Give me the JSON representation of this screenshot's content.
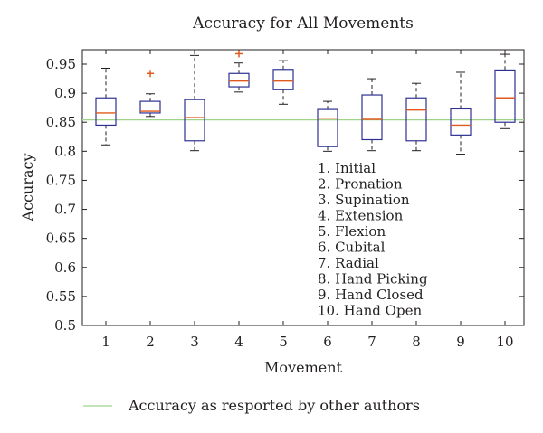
{
  "chart_data": {
    "type": "box",
    "title": "Accuracy for All Movements",
    "xlabel": "Movement",
    "ylabel": "Accuracy",
    "categories": [
      "1",
      "2",
      "3",
      "4",
      "5",
      "6",
      "7",
      "8",
      "9",
      "10"
    ],
    "ylim": [
      0.5,
      0.97
    ],
    "yticks": [
      "0.5",
      "0.55",
      "0.6",
      "0.65",
      "0.7",
      "0.75",
      "0.8",
      "0.85",
      "0.9",
      "0.95"
    ],
    "boxes": [
      {
        "category": "1",
        "whisker_low": 0.811,
        "q1": 0.845,
        "median": 0.866,
        "q3": 0.892,
        "whisker_high": 0.943,
        "outliers": []
      },
      {
        "category": "2",
        "whisker_low": 0.86,
        "q1": 0.866,
        "median": 0.869,
        "q3": 0.886,
        "whisker_high": 0.899,
        "outliers": [
          0.934
        ]
      },
      {
        "category": "3",
        "whisker_low": 0.801,
        "q1": 0.818,
        "median": 0.858,
        "q3": 0.889,
        "whisker_high": 0.965,
        "outliers": []
      },
      {
        "category": "4",
        "whisker_low": 0.902,
        "q1": 0.911,
        "median": 0.921,
        "q3": 0.934,
        "whisker_high": 0.952,
        "outliers": [
          0.968
        ]
      },
      {
        "category": "5",
        "whisker_low": 0.881,
        "q1": 0.906,
        "median": 0.921,
        "q3": 0.941,
        "whisker_high": 0.956,
        "outliers": []
      },
      {
        "category": "6",
        "whisker_low": 0.8,
        "q1": 0.808,
        "median": 0.857,
        "q3": 0.872,
        "whisker_high": 0.886,
        "outliers": []
      },
      {
        "category": "7",
        "whisker_low": 0.801,
        "q1": 0.82,
        "median": 0.855,
        "q3": 0.897,
        "whisker_high": 0.925,
        "outliers": []
      },
      {
        "category": "8",
        "whisker_low": 0.801,
        "q1": 0.818,
        "median": 0.871,
        "q3": 0.892,
        "whisker_high": 0.917,
        "outliers": []
      },
      {
        "category": "9",
        "whisker_low": 0.795,
        "q1": 0.828,
        "median": 0.845,
        "q3": 0.873,
        "whisker_high": 0.936,
        "outliers": []
      },
      {
        "category": "10",
        "whisker_low": 0.839,
        "q1": 0.85,
        "median": 0.892,
        "q3": 0.94,
        "whisker_high": 0.967,
        "outliers": []
      }
    ],
    "reference_line": {
      "value": 0.854,
      "label": "Accuracy as resported by other authors"
    },
    "annotations": [
      "1. Initial",
      "2. Pronation",
      "3. Supination",
      "4. Extension",
      "5. Flexion",
      "6. Cubital",
      "7. Radial",
      "8. Hand Picking",
      "9. Hand Closed",
      "10. Hand Open"
    ],
    "grid": false,
    "legend_position": "bottom-left",
    "colors": {
      "box": "#2e3192",
      "median": "#e05a1f",
      "whisker": "#231f20",
      "outlier": "#e05a1f",
      "reference": "#9fd38a",
      "axis": "#231f20"
    }
  }
}
